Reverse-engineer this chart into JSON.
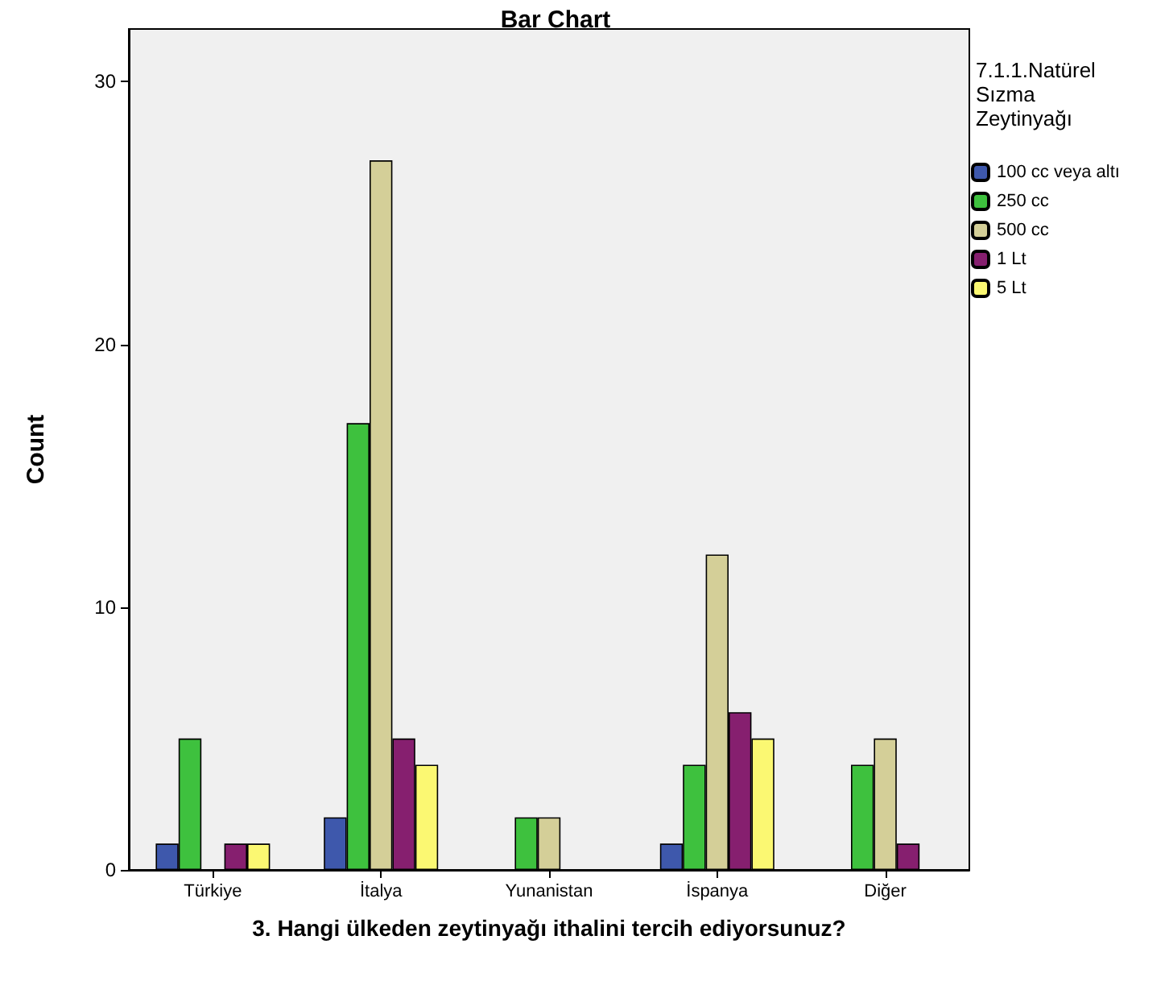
{
  "chart_data": {
    "type": "bar",
    "title": "Bar Chart",
    "xlabel": "3. Hangi ülkeden zeytinyağı ithalini tercih ediyorsunuz?",
    "ylabel": "Count",
    "legend_title": "7.1.1.Natürel Sızma Zeytinyağı",
    "categories": [
      "Türkiye",
      "İtalya",
      "Yunanistan",
      "İspanya",
      "Diğer"
    ],
    "series": [
      {
        "name": "100 cc veya altı",
        "color": "#3e58ac",
        "values": [
          1,
          2,
          null,
          1,
          null
        ]
      },
      {
        "name": "250 cc",
        "color": "#3ec13e",
        "values": [
          5,
          17,
          2,
          4,
          4
        ]
      },
      {
        "name": "500 cc",
        "color": "#d4cf98",
        "values": [
          null,
          27,
          2,
          12,
          5
        ]
      },
      {
        "name": "1 Lt",
        "color": "#861f6f",
        "values": [
          1,
          5,
          null,
          6,
          1
        ]
      },
      {
        "name": "5 Lt",
        "color": "#fbf872",
        "values": [
          1,
          4,
          null,
          5,
          null
        ]
      }
    ],
    "ylim": [
      0,
      32
    ],
    "yticks": [
      0,
      10,
      20,
      30
    ],
    "grid": false,
    "legend": "right"
  }
}
